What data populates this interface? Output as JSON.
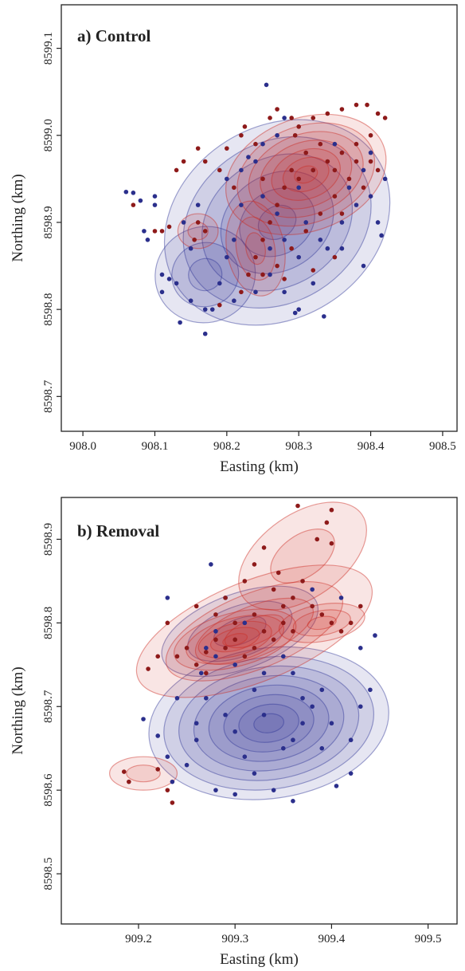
{
  "colors": {
    "group_red": "#cc2a22",
    "group_blue": "#2e3596",
    "point_red": "#8e1a1a",
    "point_blue": "#2b2f8c"
  },
  "chart_data": [
    {
      "type": "scatter",
      "title": "a) Control",
      "xlabel": "Easting (km)",
      "ylabel": "Northing (km)",
      "xlim": [
        907.97,
        908.52
      ],
      "ylim": [
        8598.66,
        8599.15
      ],
      "xticks": [
        "908.0",
        "908.1",
        "908.2",
        "908.3",
        "908.4",
        "908.5"
      ],
      "yticks": [
        "8598.7",
        "8598.8",
        "8598.9",
        "8599.0",
        "8599.1"
      ],
      "grid": false,
      "contours": {
        "blue": [
          {
            "cx": 908.27,
            "cy": 8598.9,
            "rx": 0.165,
            "ry": 0.11,
            "rot": 32,
            "levels": 6
          },
          {
            "cx": 908.17,
            "cy": 8598.84,
            "rx": 0.07,
            "ry": 0.055,
            "rot": 20,
            "levels": 3
          }
        ],
        "red": [
          {
            "cx": 908.31,
            "cy": 8598.955,
            "rx": 0.115,
            "ry": 0.065,
            "rot": 20,
            "levels": 7
          },
          {
            "cx": 908.24,
            "cy": 8598.87,
            "rx": 0.04,
            "ry": 0.055,
            "rot": 10,
            "levels": 3
          },
          {
            "cx": 908.16,
            "cy": 8598.89,
            "rx": 0.028,
            "ry": 0.02,
            "rot": 0,
            "levels": 2
          }
        ]
      },
      "series": [
        {
          "color": "blue",
          "points": [
            [
              908.07,
              8598.934
            ],
            [
              908.08,
              8598.925
            ],
            [
              908.085,
              8598.89
            ],
            [
              908.09,
              8598.88
            ],
            [
              908.1,
              8598.93
            ],
            [
              908.1,
              8598.92
            ],
            [
              908.11,
              8598.84
            ],
            [
              908.12,
              8598.835
            ],
            [
              908.11,
              8598.82
            ],
            [
              908.13,
              8598.83
            ],
            [
              908.135,
              8598.785
            ],
            [
              908.15,
              8598.81
            ],
            [
              908.17,
              8598.772
            ],
            [
              908.18,
              8598.8
            ],
            [
              908.19,
              8598.83
            ],
            [
              908.2,
              8598.86
            ],
            [
              908.21,
              8598.88
            ],
            [
              908.2,
              8598.95
            ],
            [
              908.22,
              8598.96
            ],
            [
              908.24,
              8598.97
            ],
            [
              908.25,
              8598.93
            ],
            [
              908.27,
              8598.91
            ],
            [
              908.28,
              8598.88
            ],
            [
              908.3,
              8598.86
            ],
            [
              908.3,
              8598.8
            ],
            [
              908.295,
              8598.796
            ],
            [
              908.32,
              8598.83
            ],
            [
              908.34,
              8598.87
            ],
            [
              908.36,
              8598.9
            ],
            [
              908.38,
              8598.92
            ],
            [
              908.4,
              8598.93
            ],
            [
              908.41,
              8598.9
            ],
            [
              908.415,
              8598.885
            ],
            [
              908.42,
              8598.95
            ],
            [
              908.39,
              8598.96
            ],
            [
              908.255,
              8599.058
            ],
            [
              908.28,
              8599.02
            ],
            [
              908.27,
              8599.0
            ],
            [
              908.25,
              8598.99
            ],
            [
              908.23,
              8598.975
            ],
            [
              908.26,
              8598.84
            ],
            [
              908.28,
              8598.82
            ],
            [
              908.335,
              8598.792
            ],
            [
              908.24,
              8598.82
            ],
            [
              908.15,
              8598.87
            ],
            [
              908.14,
              8598.9
            ],
            [
              908.16,
              8598.92
            ],
            [
              908.22,
              8598.92
            ],
            [
              908.3,
              8598.94
            ],
            [
              908.32,
              8598.96
            ],
            [
              908.35,
              8598.99
            ],
            [
              908.36,
              8598.87
            ],
            [
              908.39,
              8598.85
            ],
            [
              908.17,
              8598.8
            ],
            [
              908.21,
              8598.81
            ],
            [
              908.26,
              8598.87
            ],
            [
              908.31,
              8598.9
            ],
            [
              908.33,
              8598.88
            ],
            [
              908.37,
              8598.94
            ],
            [
              908.4,
              8598.98
            ],
            [
              908.06,
              8598.935
            ]
          ]
        },
        {
          "color": "red",
          "points": [
            [
              908.13,
              8598.96
            ],
            [
              908.14,
              8598.97
            ],
            [
              908.16,
              8598.985
            ],
            [
              908.17,
              8598.97
            ],
            [
              908.19,
              8598.96
            ],
            [
              908.2,
              8598.985
            ],
            [
              908.22,
              8599.0
            ],
            [
              908.225,
              8599.01
            ],
            [
              908.24,
              8598.99
            ],
            [
              908.26,
              8599.02
            ],
            [
              908.27,
              8599.03
            ],
            [
              908.29,
              8599.02
            ],
            [
              908.3,
              8599.01
            ],
            [
              908.32,
              8599.02
            ],
            [
              908.34,
              8599.025
            ],
            [
              908.36,
              8599.03
            ],
            [
              908.38,
              8599.035
            ],
            [
              908.395,
              8599.035
            ],
            [
              908.41,
              8599.025
            ],
            [
              908.42,
              8599.02
            ],
            [
              908.4,
              8599.0
            ],
            [
              908.38,
              8598.99
            ],
            [
              908.36,
              8598.98
            ],
            [
              908.34,
              8598.97
            ],
            [
              908.32,
              8598.96
            ],
            [
              908.3,
              8598.95
            ],
            [
              908.29,
              8598.96
            ],
            [
              908.31,
              8598.98
            ],
            [
              908.33,
              8598.99
            ],
            [
              908.35,
              8598.96
            ],
            [
              908.37,
              8598.95
            ],
            [
              908.39,
              8598.94
            ],
            [
              908.4,
              8598.97
            ],
            [
              908.28,
              8598.94
            ],
            [
              908.27,
              8598.92
            ],
            [
              908.26,
              8598.9
            ],
            [
              908.25,
              8598.88
            ],
            [
              908.24,
              8598.86
            ],
            [
              908.23,
              8598.84
            ],
            [
              908.22,
              8598.82
            ],
            [
              908.25,
              8598.84
            ],
            [
              908.27,
              8598.85
            ],
            [
              908.29,
              8598.87
            ],
            [
              908.31,
              8598.89
            ],
            [
              908.33,
              8598.91
            ],
            [
              908.35,
              8598.93
            ],
            [
              908.16,
              8598.9
            ],
            [
              908.155,
              8598.88
            ],
            [
              908.17,
              8598.89
            ],
            [
              908.1,
              8598.89
            ],
            [
              908.11,
              8598.89
            ],
            [
              908.12,
              8598.895
            ],
            [
              908.07,
              8598.92
            ],
            [
              908.19,
              8598.805
            ],
            [
              908.28,
              8598.835
            ],
            [
              908.32,
              8598.845
            ],
            [
              908.35,
              8598.86
            ],
            [
              908.36,
              8598.91
            ],
            [
              908.38,
              8598.97
            ],
            [
              908.41,
              8598.96
            ],
            [
              908.295,
              8599.0
            ],
            [
              908.25,
              8598.95
            ],
            [
              908.21,
              8598.94
            ]
          ]
        }
      ]
    },
    {
      "type": "scatter",
      "title": "b) Removal",
      "xlabel": "Easting (km)",
      "ylabel": "Northing (km)",
      "xlim": [
        909.12,
        909.53
      ],
      "ylim": [
        8598.44,
        8598.95
      ],
      "xticks": [
        "909.2",
        "909.3",
        "909.4",
        "909.5"
      ],
      "yticks": [
        "8598.5",
        "8598.6",
        "8598.7",
        "8598.8",
        "8598.9"
      ],
      "grid": false,
      "contours": {
        "blue": [
          {
            "cx": 909.335,
            "cy": 8598.68,
            "rx": 0.125,
            "ry": 0.09,
            "rot": 8,
            "levels": 8
          },
          {
            "cx": 909.305,
            "cy": 8598.79,
            "rx": 0.085,
            "ry": 0.045,
            "rot": 20,
            "levels": 3
          }
        ],
        "red": [
          {
            "cx": 909.32,
            "cy": 8598.79,
            "rx": 0.13,
            "ry": 0.06,
            "rot": 22,
            "levels": 4
          },
          {
            "cx": 909.3,
            "cy": 8598.78,
            "rx": 0.065,
            "ry": 0.032,
            "rot": 15,
            "levels": 5
          },
          {
            "cx": 909.39,
            "cy": 8598.8,
            "rx": 0.045,
            "ry": 0.022,
            "rot": 10,
            "levels": 3
          },
          {
            "cx": 909.37,
            "cy": 8598.88,
            "rx": 0.075,
            "ry": 0.05,
            "rot": 35,
            "levels": 2
          },
          {
            "cx": 909.205,
            "cy": 8598.62,
            "rx": 0.035,
            "ry": 0.02,
            "rot": 0,
            "levels": 2
          }
        ]
      },
      "series": [
        {
          "color": "blue",
          "points": [
            [
              909.205,
              8598.685
            ],
            [
              909.23,
              8598.83
            ],
            [
              909.275,
              8598.87
            ],
            [
              909.22,
              8598.665
            ],
            [
              909.23,
              8598.64
            ],
            [
              909.235,
              8598.61
            ],
            [
              909.25,
              8598.63
            ],
            [
              909.26,
              8598.66
            ],
            [
              909.27,
              8598.71
            ],
            [
              909.265,
              8598.74
            ],
            [
              909.28,
              8598.76
            ],
            [
              909.29,
              8598.69
            ],
            [
              909.3,
              8598.67
            ],
            [
              909.31,
              8598.64
            ],
            [
              909.32,
              8598.62
            ],
            [
              909.34,
              8598.6
            ],
            [
              909.36,
              8598.587
            ],
            [
              909.28,
              8598.6
            ],
            [
              909.3,
              8598.595
            ],
            [
              909.35,
              8598.65
            ],
            [
              909.36,
              8598.66
            ],
            [
              909.37,
              8598.68
            ],
            [
              909.38,
              8598.7
            ],
            [
              909.39,
              8598.72
            ],
            [
              909.4,
              8598.68
            ],
            [
              909.42,
              8598.66
            ],
            [
              909.43,
              8598.7
            ],
            [
              909.44,
              8598.72
            ],
            [
              909.445,
              8598.785
            ],
            [
              909.43,
              8598.77
            ],
            [
              909.41,
              8598.83
            ],
            [
              909.38,
              8598.84
            ],
            [
              909.32,
              8598.72
            ],
            [
              909.33,
              8598.74
            ],
            [
              909.35,
              8598.76
            ],
            [
              909.31,
              8598.8
            ],
            [
              909.29,
              8598.83
            ],
            [
              909.28,
              8598.79
            ],
            [
              909.27,
              8598.77
            ],
            [
              909.33,
              8598.69
            ],
            [
              909.36,
              8598.74
            ],
            [
              909.39,
              8598.65
            ],
            [
              909.42,
              8598.62
            ],
            [
              909.405,
              8598.605
            ],
            [
              909.26,
              8598.68
            ],
            [
              909.24,
              8598.71
            ],
            [
              909.3,
              8598.75
            ],
            [
              909.37,
              8598.71
            ]
          ]
        },
        {
          "color": "red",
          "points": [
            [
              909.365,
              8598.94
            ],
            [
              909.4,
              8598.935
            ],
            [
              909.395,
              8598.92
            ],
            [
              909.385,
              8598.9
            ],
            [
              909.4,
              8598.895
            ],
            [
              909.33,
              8598.89
            ],
            [
              909.32,
              8598.87
            ],
            [
              909.31,
              8598.85
            ],
            [
              909.29,
              8598.83
            ],
            [
              909.34,
              8598.84
            ],
            [
              909.36,
              8598.83
            ],
            [
              909.37,
              8598.85
            ],
            [
              909.38,
              8598.82
            ],
            [
              909.39,
              8598.81
            ],
            [
              909.4,
              8598.8
            ],
            [
              909.41,
              8598.79
            ],
            [
              909.42,
              8598.8
            ],
            [
              909.43,
              8598.82
            ],
            [
              909.35,
              8598.8
            ],
            [
              909.34,
              8598.78
            ],
            [
              909.33,
              8598.79
            ],
            [
              909.32,
              8598.77
            ],
            [
              909.31,
              8598.76
            ],
            [
              909.3,
              8598.78
            ],
            [
              909.29,
              8598.77
            ],
            [
              909.28,
              8598.78
            ],
            [
              909.27,
              8598.765
            ],
            [
              909.26,
              8598.75
            ],
            [
              909.25,
              8598.77
            ],
            [
              909.24,
              8598.76
            ],
            [
              909.22,
              8598.76
            ],
            [
              909.21,
              8598.745
            ],
            [
              909.23,
              8598.8
            ],
            [
              909.26,
              8598.82
            ],
            [
              909.28,
              8598.81
            ],
            [
              909.3,
              8598.8
            ],
            [
              909.32,
              8598.81
            ],
            [
              909.35,
              8598.82
            ],
            [
              909.36,
              8598.79
            ],
            [
              909.27,
              8598.74
            ],
            [
              909.185,
              8598.622
            ],
            [
              909.19,
              8598.61
            ],
            [
              909.22,
              8598.625
            ],
            [
              909.23,
              8598.6
            ],
            [
              909.235,
              8598.585
            ],
            [
              909.345,
              8598.86
            ]
          ]
        }
      ]
    }
  ]
}
